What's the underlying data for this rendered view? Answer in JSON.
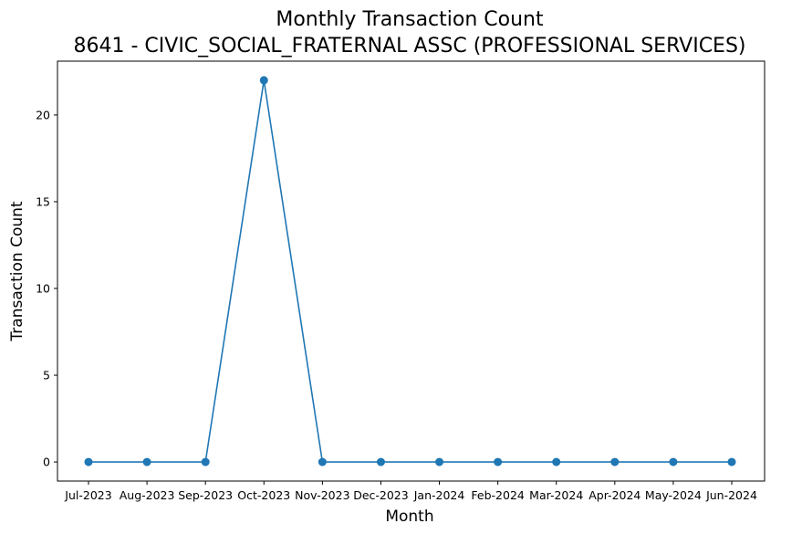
{
  "chart_data": {
    "type": "line",
    "title": "Monthly Transaction Count",
    "subtitle": "8641 - CIVIC_SOCIAL_FRATERNAL ASSC (PROFESSIONAL SERVICES)",
    "xlabel": "Month",
    "ylabel": "Transaction Count",
    "categories": [
      "Jul-2023",
      "Aug-2023",
      "Sep-2023",
      "Oct-2023",
      "Nov-2023",
      "Dec-2023",
      "Jan-2024",
      "Feb-2024",
      "Mar-2024",
      "Apr-2024",
      "May-2024",
      "Jun-2024"
    ],
    "series": [
      {
        "values": [
          0,
          0,
          0,
          22,
          0,
          0,
          0,
          0,
          0,
          0,
          0,
          0
        ]
      }
    ],
    "ylim": [
      -1.1,
      23.1
    ],
    "yticks": [
      0,
      5,
      10,
      15,
      20
    ],
    "grid": false,
    "marker": "circle",
    "line_color": "#1f77b4"
  }
}
